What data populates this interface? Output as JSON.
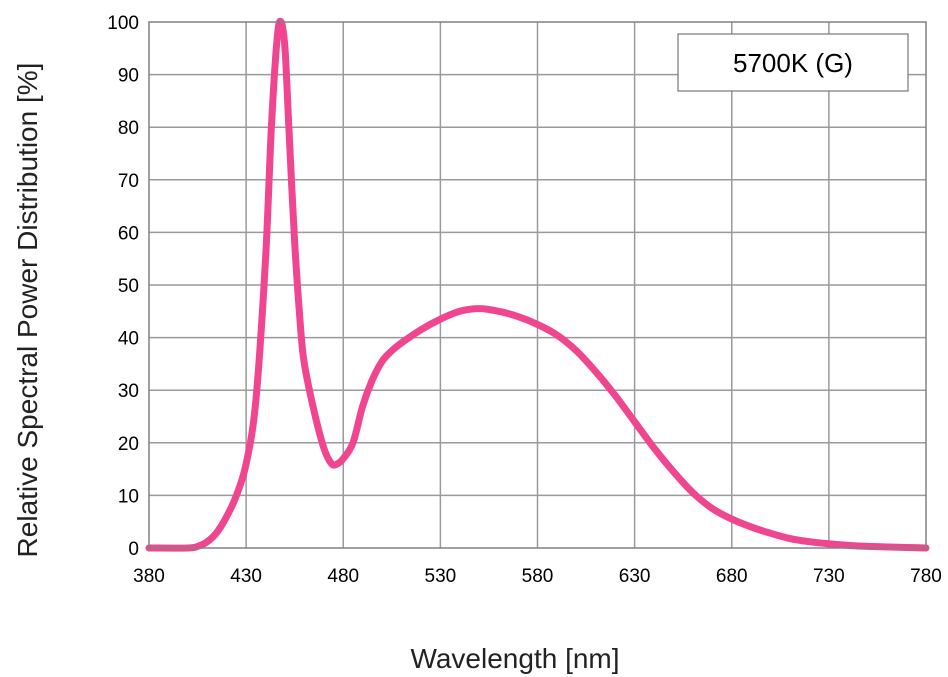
{
  "chart_data": {
    "type": "line",
    "title": "",
    "xlabel": "Wavelength [nm]",
    "ylabel": "Relative Spectral Power Distribution [%]",
    "xlim": [
      380,
      780
    ],
    "ylim": [
      0,
      100
    ],
    "x_ticks": [
      380,
      430,
      480,
      530,
      580,
      630,
      680,
      730,
      780
    ],
    "y_ticks": [
      0,
      10,
      20,
      30,
      40,
      50,
      60,
      70,
      80,
      90,
      100
    ],
    "grid": true,
    "legend_position": "top-right",
    "series": [
      {
        "name": "5700K (G)",
        "color": "#f0468f",
        "x": [
          380,
          400,
          405,
          410,
          415,
          420,
          425,
          430,
          435,
          440,
          443,
          446,
          448,
          450,
          452,
          455,
          458,
          460,
          465,
          470,
          474,
          477,
          480,
          485,
          490,
          495,
          500,
          505,
          510,
          520,
          530,
          540,
          550,
          560,
          570,
          580,
          590,
          600,
          610,
          620,
          630,
          640,
          650,
          660,
          670,
          680,
          690,
          700,
          710,
          720,
          730,
          740,
          750,
          760,
          770,
          780
        ],
        "y": [
          0,
          0,
          0.3,
          1.2,
          3,
          6,
          10,
          16,
          28,
          55,
          80,
          97,
          100,
          95,
          80,
          58,
          42,
          35,
          26,
          19,
          16,
          16,
          17,
          20,
          27,
          32,
          35.5,
          37.5,
          39,
          41.5,
          43.5,
          45,
          45.5,
          45,
          44,
          42.5,
          40.5,
          37.5,
          33.5,
          29,
          24,
          19,
          14.5,
          10.5,
          7.5,
          5.5,
          4,
          2.8,
          1.8,
          1.2,
          0.8,
          0.5,
          0.3,
          0.2,
          0.1,
          0
        ]
      }
    ]
  }
}
